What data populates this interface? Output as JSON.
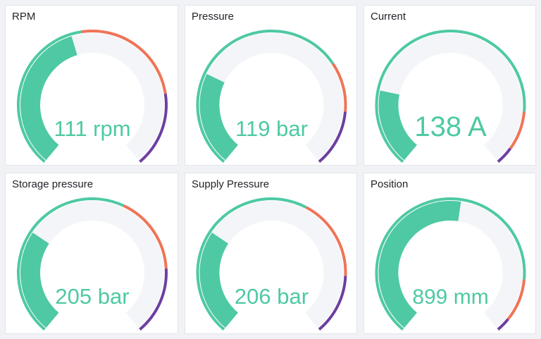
{
  "colors": {
    "track": "#f4f5f8",
    "value": "#4ec9a3",
    "thresholds": [
      "#4ec9a3",
      "#ef7457",
      "#6d3fa0"
    ]
  },
  "panels": [
    {
      "title": "RPM",
      "value": 111,
      "unit": "rpm",
      "display": "111 rpm",
      "fill": 0.44,
      "thresholds": [
        0.47,
        0.79
      ]
    },
    {
      "title": "Pressure",
      "value": 119,
      "unit": "bar",
      "display": "119 bar",
      "fill": 0.27,
      "thresholds": [
        0.7,
        0.84
      ]
    },
    {
      "title": "Current",
      "value": 138,
      "unit": "A",
      "display": "138 A",
      "fill": 0.22,
      "thresholds": [
        0.84,
        0.95
      ]
    },
    {
      "title": "Storage pressure",
      "value": 205,
      "unit": "bar",
      "display": "205 bar",
      "fill": 0.3,
      "thresholds": [
        0.59,
        0.81
      ]
    },
    {
      "title": "Supply Pressure",
      "value": 206,
      "unit": "bar",
      "display": "206 bar",
      "fill": 0.3,
      "thresholds": [
        0.6,
        0.83
      ]
    },
    {
      "title": "Position",
      "value": 899,
      "unit": "mm",
      "display": "899 mm",
      "fill": 0.53,
      "thresholds": [
        0.84,
        0.96
      ]
    }
  ]
}
